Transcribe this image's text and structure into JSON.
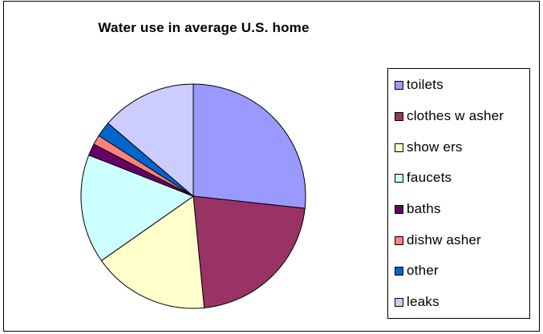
{
  "chart_data": {
    "type": "pie",
    "title": "Water use in average U.S. home",
    "legend_position": "right",
    "slices": [
      {
        "label": "toilets",
        "value": 26.7,
        "color": "#9999ff"
      },
      {
        "label": "clothes w asher",
        "value": 21.7,
        "color": "#993366"
      },
      {
        "label": "show ers",
        "value": 16.8,
        "color": "#ffffcc"
      },
      {
        "label": "faucets",
        "value": 15.7,
        "color": "#ccffff"
      },
      {
        "label": "baths",
        "value": 1.7,
        "color": "#660066"
      },
      {
        "label": "dishw asher",
        "value": 1.4,
        "color": "#ff8080"
      },
      {
        "label": "other",
        "value": 2.2,
        "color": "#0066cc"
      },
      {
        "label": "leaks",
        "value": 13.7,
        "color": "#ccccff"
      }
    ]
  }
}
